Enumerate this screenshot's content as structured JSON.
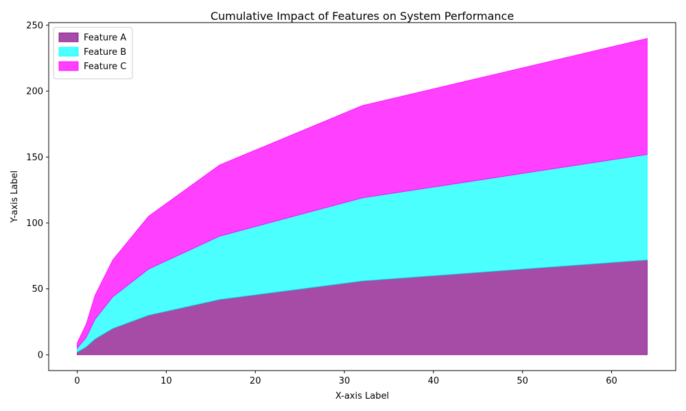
{
  "chart_data": {
    "type": "area",
    "stacked": true,
    "title": "Cumulative Impact of Features on System Performance",
    "xlabel": "X-axis Label",
    "ylabel": "Y-axis Label",
    "x": [
      0,
      1,
      2,
      4,
      8,
      16,
      32,
      64
    ],
    "series": [
      {
        "name": "Feature A",
        "values": [
          2,
          6,
          12,
          20,
          30,
          42,
          56,
          72
        ],
        "color": "#800080",
        "opacity": 0.7
      },
      {
        "name": "Feature B",
        "values": [
          3,
          7,
          15,
          24,
          35,
          48,
          63,
          80
        ],
        "color": "#00ffff",
        "opacity": 0.7
      },
      {
        "name": "Feature C",
        "values": [
          4,
          10,
          18,
          28,
          40,
          54,
          70,
          88
        ],
        "color": "#ff00ff",
        "opacity": 0.75
      }
    ],
    "xlim": [
      -3.2,
      67.2
    ],
    "ylim": [
      -12,
      252
    ],
    "xticks": [
      0,
      10,
      20,
      30,
      40,
      50,
      60
    ],
    "yticks": [
      0,
      50,
      100,
      150,
      200,
      250
    ],
    "grid": false,
    "legend_position": "top-left"
  }
}
